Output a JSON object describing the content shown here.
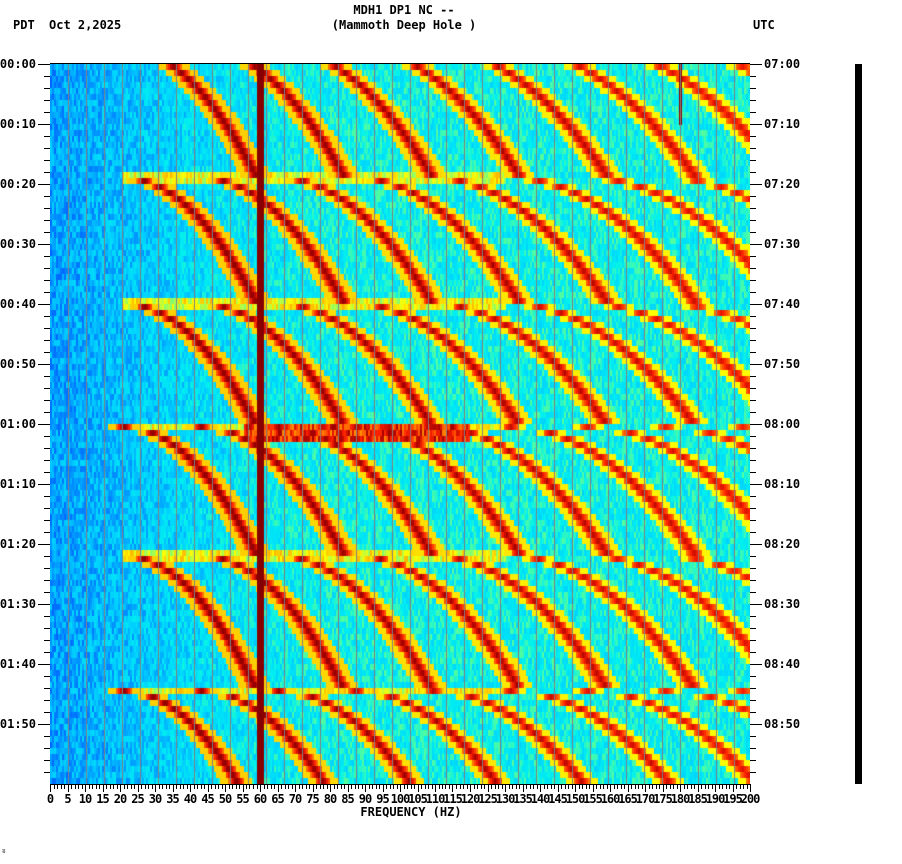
{
  "header": {
    "station_line": "MDH1 DP1 NC --",
    "location_line": "(Mammoth Deep Hole )",
    "left_timezone": "PDT",
    "date": "Oct 2,2025",
    "right_timezone": "UTC"
  },
  "footer": {
    "corner_mark": "ʬ"
  },
  "colors": {
    "background": "#ffffff",
    "axis": "#000000",
    "gridline": "#808080",
    "colormap": [
      "#0000c8",
      "#0050ff",
      "#0090ff",
      "#00d0ff",
      "#00f0f0",
      "#60ff90",
      "#ffff00",
      "#ff9000",
      "#ff2000",
      "#a00000",
      "#800000"
    ]
  },
  "chart_data": {
    "type": "heatmap",
    "title": "MDH1 DP1 NC -- (Mammoth Deep Hole )",
    "subtitle": "Oct 2,2025",
    "xlabel": "FREQUENCY (HZ)",
    "ylabel_left": "PDT",
    "ylabel_right": "UTC",
    "xlim": [
      0,
      200
    ],
    "x_tick_step": 5,
    "x_minor_tick_step": 1,
    "x_ticks": [
      0,
      5,
      10,
      15,
      20,
      25,
      30,
      35,
      40,
      45,
      50,
      55,
      60,
      65,
      70,
      75,
      80,
      85,
      90,
      95,
      100,
      105,
      110,
      115,
      120,
      125,
      130,
      135,
      140,
      145,
      150,
      155,
      160,
      165,
      170,
      175,
      180,
      185,
      190,
      195,
      200
    ],
    "x_gridlines_every_hz": 5,
    "ylim_minutes": [
      0,
      120
    ],
    "y_minor_tick_minutes": 2,
    "y_ticks_left": [
      "00:00",
      "00:10",
      "00:20",
      "00:30",
      "00:40",
      "00:50",
      "01:00",
      "01:10",
      "01:20",
      "01:30",
      "01:40",
      "01:50"
    ],
    "y_ticks_right": [
      "07:00",
      "07:10",
      "07:20",
      "07:30",
      "07:40",
      "07:50",
      "08:00",
      "08:10",
      "08:20",
      "08:30",
      "08:40",
      "08:50"
    ],
    "features": {
      "constant_line_hz": 60,
      "secondary_line_hz": 180,
      "secondary_line_minutes": [
        0,
        10
      ],
      "sweep_period_minutes": 20.7,
      "sweep_start_minutes": -3.0,
      "sweep_reset_minutes": [
        18.5,
        39.5,
        60,
        81.5,
        104
      ],
      "sweep_harmonic_count": 9,
      "sweep_start_hz_first": 22,
      "sweep_end_hz_first": 55,
      "broadband_event_minutes": 61,
      "background_level_low_freq": "blue",
      "background_level_high_freq": "cyan"
    }
  }
}
